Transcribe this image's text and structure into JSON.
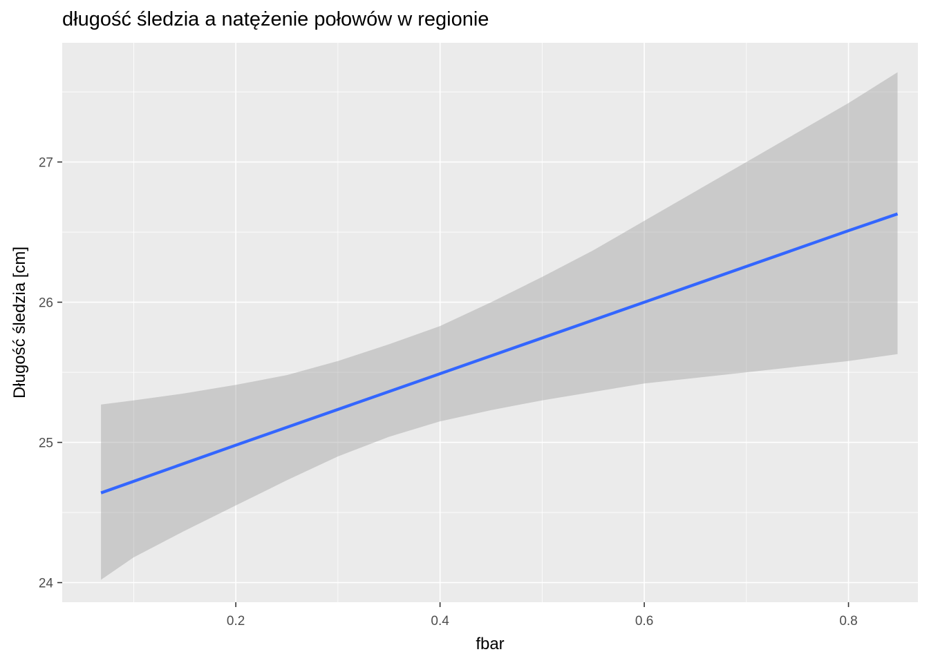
{
  "chart_data": {
    "type": "line",
    "title": "długość śledzia a natężenie połowów w regionie",
    "xlabel": "fbar",
    "ylabel": "Długość śledzia [cm]",
    "xlim": [
      0.03,
      0.868
    ],
    "ylim": [
      23.86,
      27.85
    ],
    "x_ticks": [
      0.2,
      0.4,
      0.6,
      0.8
    ],
    "x_tick_labels": [
      "0.2",
      "0.4",
      "0.6",
      "0.8"
    ],
    "y_ticks": [
      24,
      25,
      26,
      27
    ],
    "y_tick_labels": [
      "24",
      "25",
      "26",
      "27"
    ],
    "x_minor_ticks": [
      0.1,
      0.3,
      0.5,
      0.7
    ],
    "y_minor_ticks": [
      24.5,
      25.5,
      26.5,
      27.5
    ],
    "grid": true,
    "series": [
      {
        "x": [
          0.068,
          0.2,
          0.4,
          0.6,
          0.8,
          0.848
        ],
        "y": [
          24.64,
          24.98,
          25.49,
          26.0,
          26.51,
          26.63
        ],
        "color": "#3366FF"
      }
    ],
    "confidence_band": {
      "x": [
        0.068,
        0.1,
        0.15,
        0.2,
        0.25,
        0.3,
        0.35,
        0.4,
        0.45,
        0.5,
        0.55,
        0.6,
        0.65,
        0.7,
        0.75,
        0.8,
        0.848
      ],
      "lower": [
        24.02,
        24.18,
        24.37,
        24.55,
        24.73,
        24.9,
        25.04,
        25.15,
        25.23,
        25.3,
        25.36,
        25.42,
        25.46,
        25.5,
        25.54,
        25.58,
        25.63
      ],
      "upper": [
        25.27,
        25.3,
        25.35,
        25.41,
        25.48,
        25.58,
        25.7,
        25.83,
        26.0,
        26.18,
        26.37,
        26.58,
        26.79,
        27.0,
        27.21,
        27.42,
        27.64
      ],
      "color": "#999999"
    },
    "colors": {
      "panel_background": "#EBEBEB",
      "grid": "#FFFFFF",
      "line": "#3366FF",
      "band": "#999999"
    }
  }
}
